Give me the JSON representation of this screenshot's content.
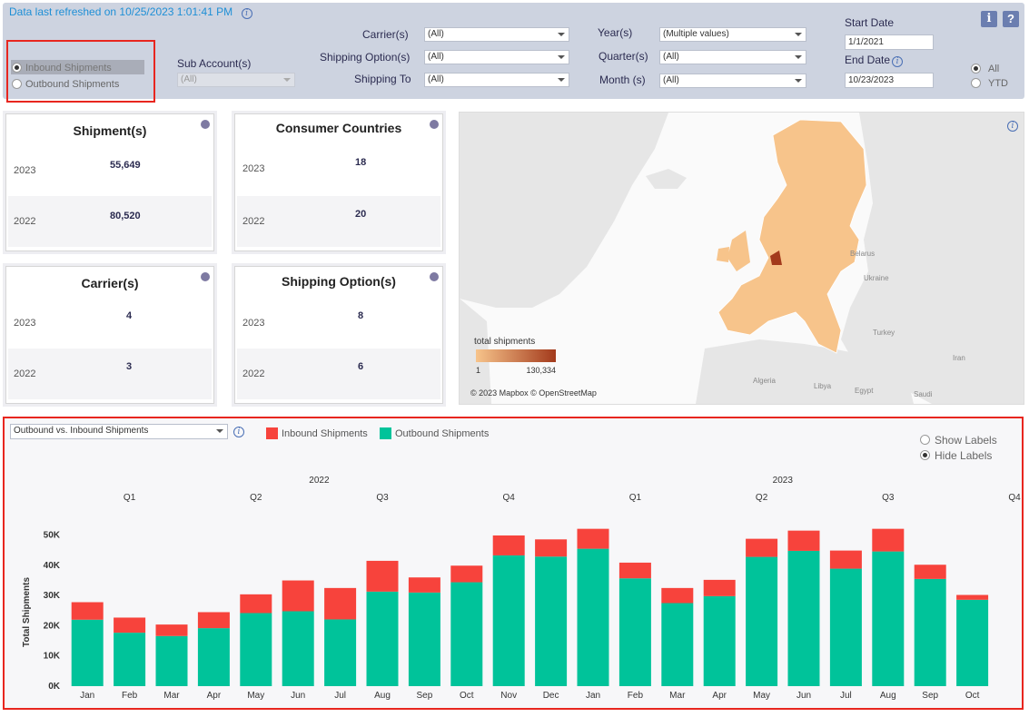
{
  "header": {
    "refresh_text": "Data last refreshed on 10/25/2023 1:01:41 PM",
    "direction_options": [
      "Inbound Shipments",
      "Outbound Shipments"
    ],
    "direction_selected": "Inbound Shipments",
    "sub_account": {
      "label": "Sub Account(s)",
      "value": "(All)"
    },
    "carriers": {
      "label": "Carrier(s)",
      "value": "(All)"
    },
    "shipping_options": {
      "label": "Shipping Option(s)",
      "value": "(All)"
    },
    "shipping_to": {
      "label": "Shipping To",
      "value": "(All)"
    },
    "years": {
      "label": "Year(s)",
      "value": "(Multiple values)"
    },
    "quarters": {
      "label": "Quarter(s)",
      "value": "(All)"
    },
    "months": {
      "label": "Month (s)",
      "value": "(All)"
    },
    "start_date": {
      "label": "Start Date",
      "value": "1/1/2021"
    },
    "end_date": {
      "label": "End Date",
      "value": "10/23/2023"
    },
    "period_options": [
      "All",
      "YTD"
    ],
    "period_selected": "All",
    "info_button": "i",
    "help_button": "?"
  },
  "kpis": {
    "shipments": {
      "title": "Shipment(s)",
      "rows": [
        {
          "year": "2023",
          "value": "55,649"
        },
        {
          "year": "2022",
          "value": "80,520"
        }
      ]
    },
    "countries": {
      "title": "Consumer Countries",
      "rows": [
        {
          "year": "2023",
          "value": "18"
        },
        {
          "year": "2022",
          "value": "20"
        }
      ]
    },
    "carriers": {
      "title": "Carrier(s)",
      "rows": [
        {
          "year": "2023",
          "value": "4"
        },
        {
          "year": "2022",
          "value": "3"
        }
      ]
    },
    "options": {
      "title": "Shipping Option(s)",
      "rows": [
        {
          "year": "2023",
          "value": "8"
        },
        {
          "year": "2022",
          "value": "6"
        }
      ]
    }
  },
  "map": {
    "legend_title": "total shipments",
    "legend_min": "1",
    "legend_max": "130,334",
    "attribution": "© 2023 Mapbox © OpenStreetMap",
    "place_labels": [
      "Belarus",
      "Ukraine",
      "Turkey",
      "Algeria",
      "Libya",
      "Egypt",
      "Iran",
      "Saudi"
    ],
    "colors": {
      "low": "#f7c48b",
      "high": "#a33a1c",
      "land": "#e3e3e3",
      "water": "#fafafa"
    }
  },
  "chart_panel": {
    "selector": "Outbound vs. Inbound Shipments",
    "label_options": [
      "Show Labels",
      "Hide Labels"
    ],
    "label_selected": "Hide Labels"
  },
  "chart_data": {
    "type": "bar",
    "stacked": true,
    "years": [
      {
        "label": "2022",
        "months": 12
      },
      {
        "label": "2023",
        "months": 10
      }
    ],
    "quarters": [
      "Q1",
      "Q2",
      "Q3",
      "Q4",
      "Q1",
      "Q2",
      "Q3",
      "Q4"
    ],
    "categories": [
      "Jan",
      "Feb",
      "Mar",
      "Apr",
      "May",
      "Jun",
      "Jul",
      "Aug",
      "Sep",
      "Oct",
      "Nov",
      "Dec",
      "Jan",
      "Feb",
      "Mar",
      "Apr",
      "May",
      "Jun",
      "Jul",
      "Aug",
      "Sep",
      "Oct"
    ],
    "series": [
      {
        "name": "Outbound Shipments",
        "color": "#00c39a",
        "values": [
          22000,
          17700,
          16600,
          19200,
          24200,
          24800,
          22100,
          31300,
          31000,
          34400,
          43300,
          42900,
          45500,
          35700,
          27500,
          29800,
          42800,
          44800,
          38900,
          44600,
          35500,
          28600
        ]
      },
      {
        "name": "Inbound Shipments",
        "color": "#f7433c",
        "values": [
          5800,
          5000,
          3800,
          5300,
          6200,
          10200,
          10400,
          10200,
          5000,
          5500,
          6600,
          5700,
          6600,
          5200,
          5000,
          5400,
          6000,
          6700,
          6000,
          7500,
          4700,
          1600
        ]
      }
    ],
    "ylabel": "Total Shipments",
    "ylim": [
      0,
      55000
    ],
    "yticks": [
      0,
      10000,
      20000,
      30000,
      40000,
      50000
    ],
    "ytick_labels": [
      "0K",
      "10K",
      "20K",
      "30K",
      "40K",
      "50K"
    ],
    "legend_position": "top-left",
    "grid": false
  }
}
